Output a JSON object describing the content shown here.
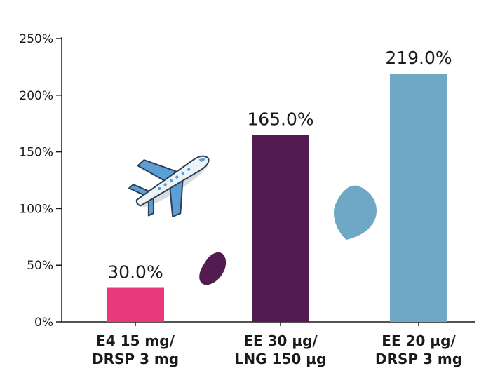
{
  "chart_data": {
    "type": "bar",
    "categories": [
      [
        "E4 15 mg/",
        "DRSP 3 mg"
      ],
      [
        "EE 30 µg/",
        "LNG 150 µg"
      ],
      [
        "EE 20 µg/",
        "DRSP 3 mg"
      ]
    ],
    "values": [
      30.0,
      165.0,
      219.0
    ],
    "data_labels": [
      "30.0%",
      "165.0%",
      "219.0%"
    ],
    "colors": [
      "#e8397a",
      "#521c50",
      "#6ea8c4"
    ],
    "ylim": [
      0,
      250
    ],
    "yticks": [
      0,
      50,
      100,
      150,
      200,
      250
    ],
    "ytick_labels": [
      "0%",
      "50%",
      "100%",
      "150%",
      "200%",
      "250%"
    ],
    "title": "",
    "xlabel": "",
    "ylabel": "",
    "grid": false,
    "decorations": {
      "airplane_icon": "airplane-icon",
      "blob_purple_color": "#521c50",
      "blob_blue_color": "#6ea8c4"
    }
  }
}
